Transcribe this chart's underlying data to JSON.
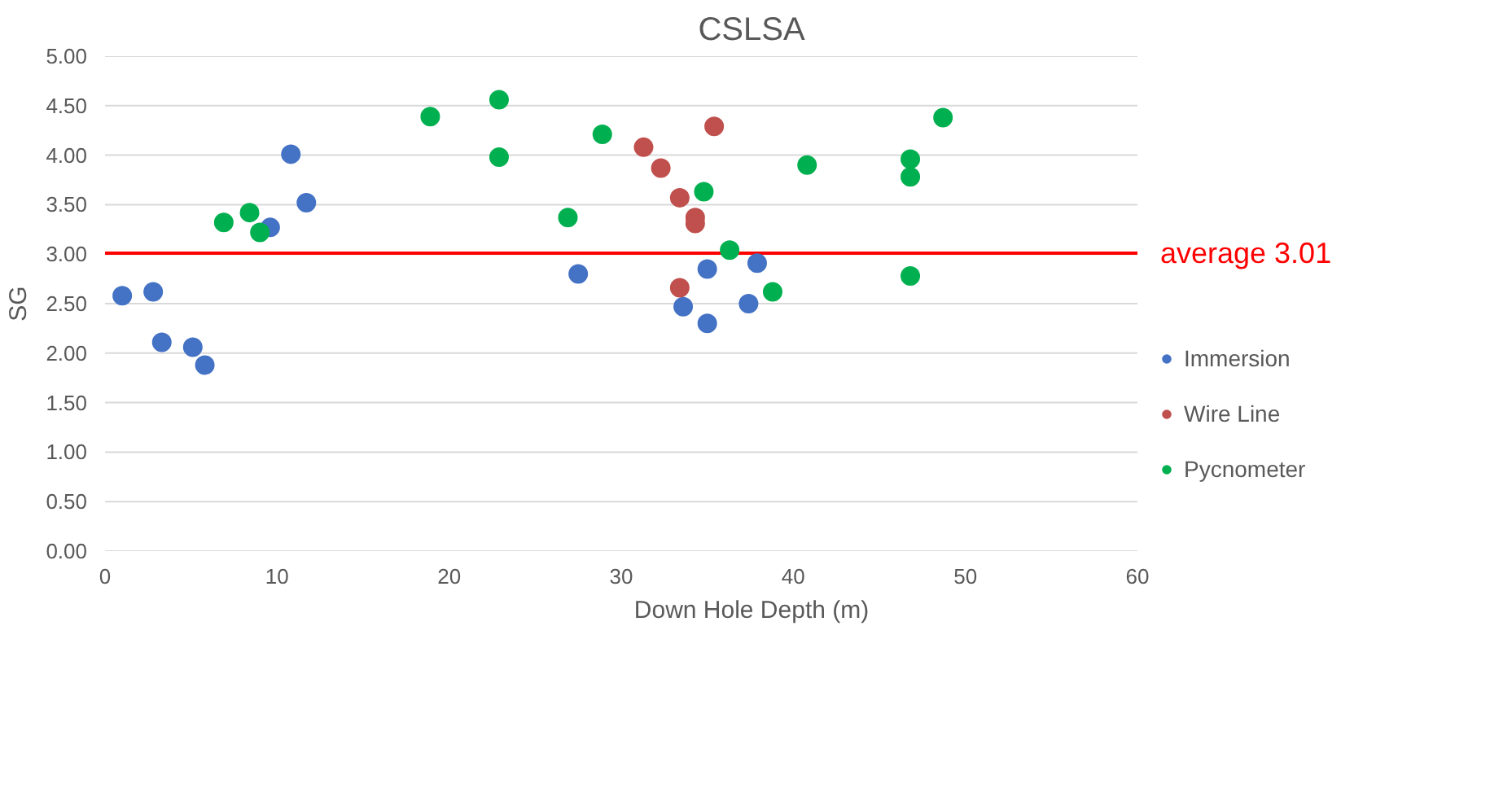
{
  "chart_data": {
    "type": "scatter",
    "title": "CSLSA",
    "xlabel": "Down Hole Depth (m)",
    "ylabel": "SG",
    "xlim": [
      0,
      60
    ],
    "xticks": [
      0,
      10,
      20,
      30,
      40,
      50,
      60
    ],
    "ylim": [
      0,
      5
    ],
    "yticks": [
      {
        "value": 0,
        "label": "0.00"
      },
      {
        "value": 0.5,
        "label": "0.50"
      },
      {
        "value": 1,
        "label": "1.00"
      },
      {
        "value": 1.5,
        "label": "1.50"
      },
      {
        "value": 2,
        "label": "2.00"
      },
      {
        "value": 2.5,
        "label": "2.50"
      },
      {
        "value": 3,
        "label": "3.00"
      },
      {
        "value": 3.5,
        "label": "3.50"
      },
      {
        "value": 4,
        "label": "4.00"
      },
      {
        "value": 4.5,
        "label": "4.50"
      },
      {
        "value": 5,
        "label": "5.00"
      }
    ],
    "grid": "y",
    "legend": "right",
    "marker": "circle",
    "ref_lines": [
      {
        "axis": "y",
        "value": 3.01,
        "label": "average 3.01",
        "color": "#ff0000",
        "line_style": "solid"
      }
    ],
    "series": [
      {
        "name": "Immersion",
        "color": "#4472c4",
        "x": [
          1.0,
          2.8,
          3.3,
          5.1,
          5.8,
          9.6,
          10.8,
          11.7,
          27.5,
          33.6,
          35.0,
          35.0,
          37.4,
          37.9
        ],
        "values": [
          2.58,
          2.62,
          2.11,
          2.06,
          1.88,
          3.27,
          4.01,
          3.52,
          2.8,
          2.47,
          2.3,
          2.85,
          2.5,
          2.91
        ]
      },
      {
        "name": "Wire Line",
        "color": "#c0504d",
        "x": [
          31.3,
          32.3,
          33.4,
          34.3,
          34.3,
          33.4,
          35.4
        ],
        "values": [
          4.08,
          3.87,
          3.57,
          3.37,
          3.31,
          2.66,
          4.29
        ]
      },
      {
        "name": "Pycnometer",
        "color": "#00b050",
        "x": [
          6.9,
          8.4,
          9.0,
          18.9,
          22.9,
          22.9,
          26.9,
          28.9,
          34.8,
          36.3,
          38.8,
          40.8,
          46.8,
          46.8,
          46.8,
          48.7
        ],
        "values": [
          3.32,
          3.42,
          3.22,
          4.39,
          4.56,
          3.98,
          3.37,
          4.21,
          3.63,
          3.04,
          2.62,
          3.9,
          3.96,
          3.78,
          2.78,
          4.38
        ]
      }
    ]
  }
}
